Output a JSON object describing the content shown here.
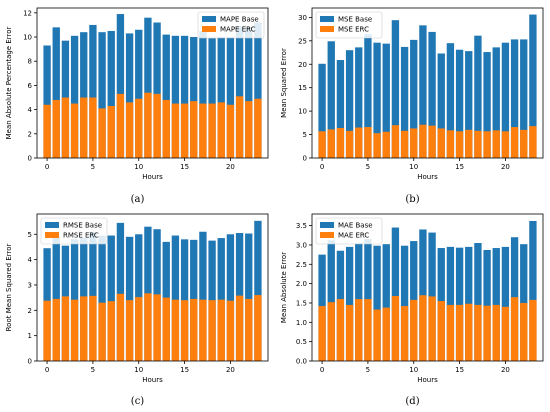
{
  "xlabel": "Hours",
  "colors": {
    "base": "#1f77b4",
    "erc": "#ff7f0e"
  },
  "chart_data": [
    {
      "type": "bar",
      "caption": "(a)",
      "ylabel": "Mean Absolute Percentage Error",
      "xlabel": "Hours",
      "x": [
        0,
        1,
        2,
        3,
        4,
        5,
        6,
        7,
        8,
        9,
        10,
        11,
        12,
        13,
        14,
        15,
        16,
        17,
        18,
        19,
        20,
        21,
        22,
        23
      ],
      "xticks": [
        0,
        5,
        10,
        15,
        20
      ],
      "ylim": [
        0,
        12.4
      ],
      "yticks": [
        0,
        2,
        4,
        6,
        8,
        10,
        12
      ],
      "legend_position": "top-right",
      "series": [
        {
          "name": "MAPE Base",
          "values": [
            9.3,
            10.8,
            9.7,
            10.1,
            10.4,
            11.0,
            10.4,
            10.5,
            11.9,
            10.3,
            10.6,
            11.6,
            11.2,
            10.2,
            10.1,
            10.1,
            10.0,
            10.5,
            9.9,
            10.0,
            10.0,
            10.9,
            10.8,
            11.2
          ]
        },
        {
          "name": "MAPE ERC",
          "values": [
            4.4,
            4.8,
            5.0,
            4.5,
            5.0,
            5.0,
            4.1,
            4.3,
            5.3,
            4.6,
            4.9,
            5.4,
            5.3,
            4.8,
            4.5,
            4.5,
            4.7,
            4.5,
            4.5,
            4.6,
            4.4,
            5.1,
            4.7,
            4.9
          ]
        }
      ]
    },
    {
      "type": "bar",
      "caption": "(b)",
      "ylabel": "Mean Squared Error",
      "xlabel": "Hours",
      "x": [
        0,
        1,
        2,
        3,
        4,
        5,
        6,
        7,
        8,
        9,
        10,
        11,
        12,
        13,
        14,
        15,
        16,
        17,
        18,
        19,
        20,
        21,
        22,
        23
      ],
      "xticks": [
        0,
        5,
        10,
        15,
        20
      ],
      "ylim": [
        0,
        32
      ],
      "yticks": [
        0,
        5,
        10,
        15,
        20,
        25,
        30
      ],
      "legend_position": "top-left",
      "series": [
        {
          "name": "MSE Base",
          "values": [
            20.1,
            24.9,
            20.9,
            23.0,
            23.6,
            26.4,
            24.6,
            24.4,
            29.4,
            23.7,
            25.2,
            28.3,
            26.9,
            22.3,
            24.5,
            23.1,
            22.8,
            26.1,
            22.6,
            23.6,
            24.6,
            25.3,
            25.3,
            30.6
          ]
        },
        {
          "name": "MSE ERC",
          "values": [
            5.7,
            6.1,
            6.4,
            5.8,
            6.5,
            6.6,
            5.3,
            5.6,
            7.0,
            5.8,
            6.3,
            7.1,
            6.9,
            6.3,
            5.9,
            5.7,
            6.0,
            5.8,
            5.7,
            5.9,
            5.7,
            6.6,
            6.0,
            6.8
          ]
        }
      ]
    },
    {
      "type": "bar",
      "caption": "(c)",
      "ylabel": "Root Mean Squared Error",
      "xlabel": "Hours",
      "x": [
        0,
        1,
        2,
        3,
        4,
        5,
        6,
        7,
        8,
        9,
        10,
        11,
        12,
        13,
        14,
        15,
        16,
        17,
        18,
        19,
        20,
        21,
        22,
        23
      ],
      "xticks": [
        0,
        5,
        10,
        15,
        20
      ],
      "ylim": [
        0,
        5.8
      ],
      "yticks": [
        0,
        1,
        2,
        3,
        4,
        5
      ],
      "legend_position": "top-left",
      "series": [
        {
          "name": "RMSE Base",
          "values": [
            4.45,
            4.95,
            4.55,
            4.8,
            4.85,
            5.1,
            4.95,
            4.95,
            5.45,
            4.9,
            5.0,
            5.3,
            5.2,
            4.7,
            4.95,
            4.8,
            4.78,
            5.1,
            4.75,
            4.85,
            5.0,
            5.05,
            5.03,
            5.53
          ]
        },
        {
          "name": "RMSE ERC",
          "values": [
            2.38,
            2.45,
            2.55,
            2.42,
            2.55,
            2.57,
            2.3,
            2.36,
            2.65,
            2.4,
            2.52,
            2.67,
            2.63,
            2.5,
            2.42,
            2.4,
            2.45,
            2.42,
            2.4,
            2.42,
            2.38,
            2.58,
            2.45,
            2.6
          ]
        }
      ]
    },
    {
      "type": "bar",
      "caption": "(d)",
      "ylabel": "Mean Absolute Error",
      "xlabel": "Hours",
      "x": [
        0,
        1,
        2,
        3,
        4,
        5,
        6,
        7,
        8,
        9,
        10,
        11,
        12,
        13,
        14,
        15,
        16,
        17,
        18,
        19,
        20,
        21,
        22,
        23
      ],
      "xticks": [
        0,
        5,
        10,
        15,
        20
      ],
      "ylim": [
        0,
        3.8
      ],
      "yticks": [
        0,
        0.5,
        1.0,
        1.5,
        2.0,
        2.5,
        3.0,
        3.5
      ],
      "legend_position": "top-left",
      "series": [
        {
          "name": "MAE Base",
          "values": [
            2.75,
            3.12,
            2.85,
            2.95,
            3.05,
            3.15,
            2.98,
            3.02,
            3.45,
            2.98,
            3.1,
            3.4,
            3.32,
            2.92,
            2.95,
            2.93,
            2.95,
            3.05,
            2.87,
            2.92,
            2.95,
            3.2,
            3.02,
            3.62
          ]
        },
        {
          "name": "MAE ERC",
          "values": [
            1.42,
            1.52,
            1.6,
            1.45,
            1.6,
            1.6,
            1.33,
            1.38,
            1.68,
            1.42,
            1.58,
            1.7,
            1.67,
            1.55,
            1.45,
            1.45,
            1.48,
            1.45,
            1.43,
            1.45,
            1.4,
            1.65,
            1.5,
            1.58
          ]
        }
      ]
    }
  ]
}
